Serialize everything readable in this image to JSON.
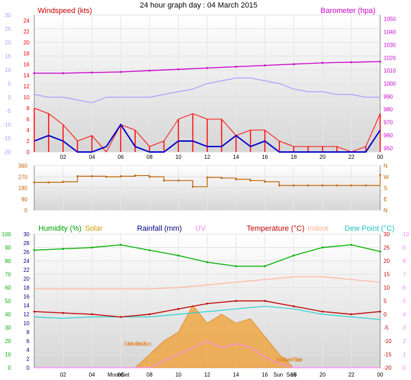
{
  "title": "24 hour graph day : 04 March 2015",
  "x_ticks": [
    "02",
    "04",
    "06",
    "08",
    "10",
    "12",
    "14",
    "16",
    "18",
    "20",
    "22",
    "00"
  ],
  "colors": {
    "wind_speed": "#ff0000",
    "wind_avg": "#0000cc",
    "barometer": "#cc00cc",
    "temp_axis": "#a0a0ff",
    "direction": "#c06000",
    "humidity": "#00b000",
    "solar": "#f0a030",
    "rainfall": "#000080",
    "uv": "#ff80ff",
    "temperature": "#c00000",
    "indoor": "#ffb090",
    "dewpoint": "#20d0d0"
  },
  "chart_data": [
    {
      "type": "line",
      "title": "",
      "series_labels": {
        "wind": "Windspeed (kts)",
        "baro": "Barometer (hpa)"
      },
      "left_axis_outer": {
        "ticks": [
          "30",
          "25",
          "20",
          "15",
          "10",
          "5",
          "0",
          "-5",
          "-10",
          "-15",
          "-20"
        ],
        "ylim": [
          -20,
          30
        ]
      },
      "left_axis": {
        "label": "Windspeed (kts)",
        "ticks": [
          "24",
          "22",
          "20",
          "18",
          "16",
          "14",
          "12",
          "10",
          "8",
          "6",
          "4",
          "2",
          "0"
        ],
        "ylim": [
          0,
          25
        ]
      },
      "right_axis": {
        "label": "Barometer (hpa)",
        "ticks": [
          "1050",
          "1040",
          "1030",
          "1020",
          "1010",
          "1000",
          "990",
          "980",
          "970",
          "960",
          "950"
        ],
        "ylim": [
          947,
          1053
        ]
      },
      "series": [
        {
          "name": "Barometer (hpa)",
          "axis": "right",
          "x": [
            0,
            2,
            4,
            6,
            8,
            10,
            12,
            14,
            16,
            18,
            20,
            22,
            24
          ],
          "values": [
            1008,
            1008,
            1008.5,
            1009,
            1010,
            1011,
            1012,
            1013,
            1014,
            1015,
            1016,
            1016.5,
            1017
          ]
        },
        {
          "name": "Temperature",
          "axis": "outer",
          "x": [
            0,
            1,
            2,
            3,
            4,
            5,
            6,
            7,
            8,
            9,
            10,
            11,
            12,
            13,
            14,
            15,
            16,
            17,
            18,
            19,
            20,
            21,
            22,
            23,
            24
          ],
          "values": [
            1,
            0,
            0,
            -1,
            -2,
            0,
            0,
            0,
            0,
            1,
            2,
            3,
            5,
            6,
            7,
            7,
            6,
            5,
            3,
            2,
            2,
            1,
            1,
            0,
            0
          ]
        },
        {
          "name": "Wind gust",
          "axis": "left",
          "x": [
            0,
            1,
            2,
            3,
            4,
            5,
            6,
            7,
            8,
            9,
            10,
            11,
            12,
            13,
            14,
            15,
            16,
            17,
            18,
            19,
            20,
            21,
            22,
            23,
            24
          ],
          "values": [
            8,
            7,
            5,
            2,
            3,
            0,
            5,
            4,
            1,
            2,
            6,
            7,
            6,
            6,
            3,
            4,
            4,
            2,
            1,
            1,
            1,
            1,
            0,
            1,
            7
          ]
        },
        {
          "name": "Wind average",
          "axis": "left",
          "x": [
            0,
            1,
            2,
            3,
            4,
            5,
            6,
            7,
            8,
            9,
            10,
            11,
            12,
            13,
            14,
            15,
            16,
            17,
            18,
            19,
            20,
            21,
            22,
            23,
            24
          ],
          "values": [
            2,
            3,
            2,
            0,
            0,
            1,
            5,
            1,
            0,
            0,
            2,
            2,
            1,
            1,
            3,
            1,
            2,
            0,
            0,
            0,
            0,
            0,
            0,
            0,
            4
          ]
        }
      ]
    },
    {
      "type": "line",
      "title": "",
      "left_axis": {
        "ticks": [
          "360",
          "270",
          "180",
          "90",
          "0"
        ],
        "ylim": [
          0,
          360
        ]
      },
      "right_axis": {
        "ticks": [
          "N",
          "W",
          "S",
          "E",
          "N"
        ]
      },
      "series": [
        {
          "name": "Wind direction",
          "x": [
            0,
            1,
            2,
            3,
            4,
            5,
            6,
            7,
            8,
            9,
            10,
            11,
            12,
            13,
            14,
            15,
            16,
            17,
            18,
            19,
            20,
            21,
            22,
            23,
            24
          ],
          "values": [
            225,
            225,
            230,
            275,
            275,
            270,
            275,
            280,
            270,
            240,
            240,
            190,
            265,
            260,
            250,
            240,
            230,
            200,
            200,
            200,
            200,
            200,
            200,
            200,
            285
          ]
        }
      ]
    },
    {
      "type": "line",
      "title": "",
      "series_labels": {
        "humidity": "Humidity (%)",
        "solar": "Solar",
        "rainfall": "Rainfall (mm)",
        "uv": "UV",
        "temperature": "Temperature (°C)",
        "indoor": "Indoor",
        "dewpoint": "Dew Point (°C)"
      },
      "left_axis_outer": {
        "ticks": [
          "100",
          "90",
          "80",
          "70",
          "60",
          "50",
          "40",
          "30",
          "20",
          "10",
          "0"
        ],
        "ylim": [
          0,
          100
        ]
      },
      "left_axis": {
        "ticks": [
          "30",
          "28",
          "26",
          "24",
          "22",
          "20",
          "18",
          "16",
          "14",
          "12",
          "10",
          "8",
          "6",
          "4",
          "2",
          "0"
        ],
        "ylim": [
          0,
          30
        ]
      },
      "right_axis": {
        "ticks": [
          "30",
          "25",
          "20",
          "15",
          "10",
          "5",
          "0",
          "-5",
          "-10",
          "-15",
          "-20"
        ],
        "ylim": [
          -20,
          30
        ]
      },
      "right_axis_outer": {
        "ticks": [
          "10",
          "9",
          "8",
          "7",
          "6",
          "5",
          "4",
          "3",
          "2",
          "1",
          "0"
        ],
        "ylim": [
          0,
          10
        ]
      },
      "x_markers": [
        {
          "label": "Sun Rise",
          "x": 7.0
        },
        {
          "label": "Sun Set",
          "x": 17.9
        },
        {
          "label": "Moon Set",
          "x": 7.3
        },
        {
          "label": "Moon Rise",
          "x": 17.7
        }
      ],
      "axis_event_labels": [
        "Moon",
        "Set",
        "Sun",
        "Se",
        "6"
      ],
      "series": [
        {
          "name": "Humidity (%)",
          "axis": "outer_left",
          "x": [
            0,
            2,
            4,
            6,
            8,
            10,
            12,
            14,
            16,
            18,
            20,
            22,
            24
          ],
          "values": [
            88,
            89,
            90,
            92,
            88,
            84,
            79,
            76,
            76,
            84,
            90,
            92,
            87
          ]
        },
        {
          "name": "Indoor",
          "axis": "right",
          "x": [
            0,
            2,
            4,
            6,
            8,
            10,
            12,
            14,
            16,
            18,
            20,
            22,
            24
          ],
          "values": [
            9.5,
            9.5,
            9.5,
            9.5,
            9.5,
            10,
            11,
            12,
            13,
            14,
            14,
            13,
            12
          ]
        },
        {
          "name": "Temperature (°C)",
          "axis": "right",
          "x": [
            0,
            2,
            4,
            6,
            8,
            10,
            12,
            14,
            16,
            18,
            20,
            22,
            24
          ],
          "values": [
            1,
            0.5,
            0,
            -1,
            0,
            2,
            4,
            5,
            5,
            3,
            1,
            0,
            1
          ]
        },
        {
          "name": "Dew Point (°C)",
          "axis": "right",
          "x": [
            0,
            2,
            4,
            6,
            8,
            10,
            12,
            14,
            16,
            18,
            20,
            22,
            24
          ],
          "values": [
            -1,
            -1.5,
            -1,
            -1,
            -1,
            0,
            1,
            2,
            3,
            2,
            0,
            -1,
            -2
          ]
        },
        {
          "name": "Solar",
          "axis": "left",
          "x": [
            0,
            7,
            8,
            9,
            10,
            11,
            12,
            13,
            14,
            15,
            16,
            17,
            18,
            24
          ],
          "values": [
            0,
            0,
            3,
            6,
            8,
            14,
            10,
            12,
            10,
            11,
            7,
            3,
            0,
            0
          ]
        },
        {
          "name": "UV",
          "axis": "outer_right",
          "x": [
            0,
            8,
            9,
            10,
            11,
            12,
            13,
            14,
            15,
            16,
            17,
            18,
            24
          ],
          "values": [
            0,
            0,
            0.5,
            1,
            1.5,
            2,
            1.5,
            1.8,
            1.5,
            0.8,
            0.3,
            0,
            0
          ]
        }
      ]
    }
  ]
}
